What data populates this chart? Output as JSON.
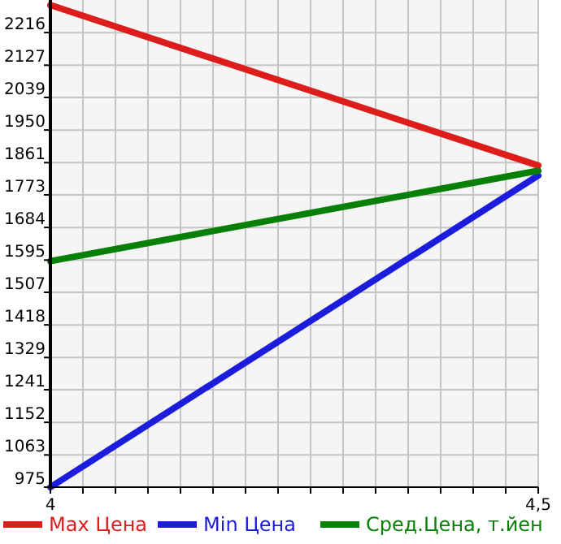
{
  "chart_data": {
    "type": "line",
    "x": [
      4,
      4.5
    ],
    "series": [
      {
        "name": "Max Цена",
        "color": "#dd1c1c",
        "values": [
          2291,
          1853
        ]
      },
      {
        "name": "Min Цена",
        "color": "#1c1cdd",
        "values": [
          975,
          1826
        ]
      },
      {
        "name": "Сред.Цена, т.йен",
        "color": "#088008",
        "values": [
          1592,
          1839
        ]
      }
    ],
    "xlim": [
      4,
      4.5
    ],
    "xticks": [
      {
        "value": 4,
        "label": "4"
      },
      {
        "value": 4.0333,
        "label": null
      },
      {
        "value": 4.0667,
        "label": null
      },
      {
        "value": 4.1,
        "label": null
      },
      {
        "value": 4.1333,
        "label": null
      },
      {
        "value": 4.1667,
        "label": null
      },
      {
        "value": 4.2,
        "label": null
      },
      {
        "value": 4.2333,
        "label": null
      },
      {
        "value": 4.2667,
        "label": null
      },
      {
        "value": 4.3,
        "label": null
      },
      {
        "value": 4.3333,
        "label": null
      },
      {
        "value": 4.3667,
        "label": null
      },
      {
        "value": 4.4,
        "label": null
      },
      {
        "value": 4.4333,
        "label": null
      },
      {
        "value": 4.4667,
        "label": null
      },
      {
        "value": 4.5,
        "label": "4,5"
      }
    ],
    "ylim": [
      975,
      2305
    ],
    "yticks": [
      975,
      1063,
      1152,
      1241,
      1329,
      1418,
      1507,
      1595,
      1684,
      1773,
      1861,
      1950,
      2039,
      2127,
      2216
    ],
    "grid": true,
    "legend": "bottom",
    "marker": "none",
    "line_style": "solid"
  }
}
